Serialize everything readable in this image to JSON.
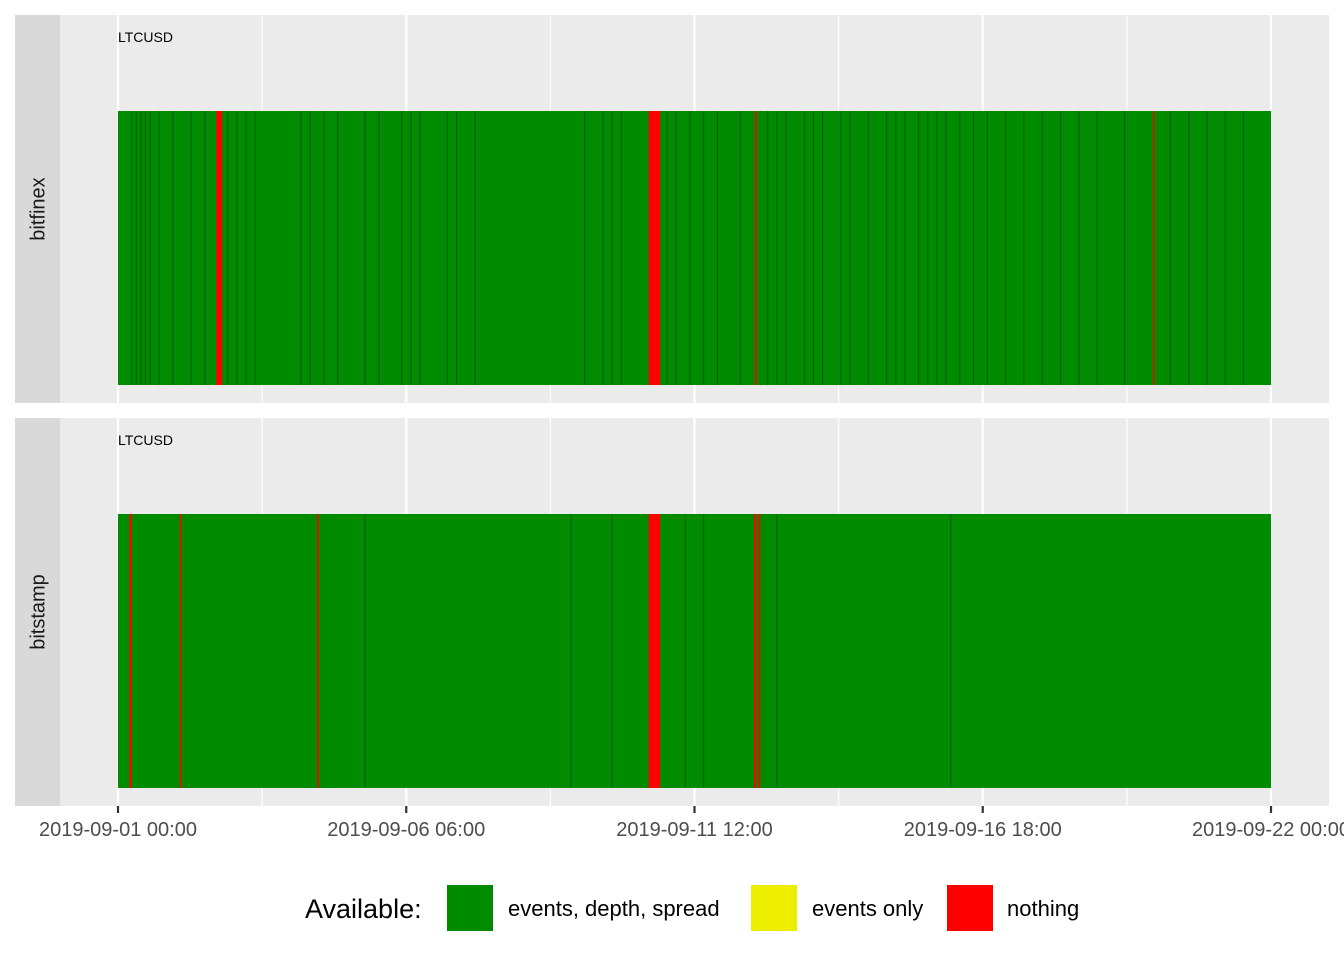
{
  "chart_data": {
    "type": "timeline",
    "x_range": [
      "2019-09-01 00:00",
      "2019-09-22 00:00"
    ],
    "x_ticks": [
      "2019-09-01 00:00",
      "2019-09-06 06:00",
      "2019-09-11 12:00",
      "2019-09-16 18:00",
      "2019-09-22 00:00"
    ],
    "legend": {
      "title": "Available:",
      "items": [
        {
          "label": "events, depth, spread",
          "color": "#008b00"
        },
        {
          "label": "events only",
          "color": "#eeee00"
        },
        {
          "label": "nothing",
          "color": "#ff0000"
        }
      ]
    },
    "colors": {
      "available": "#008b00",
      "events_only": "#eeee00",
      "nothing": "#ff0000",
      "gap_line": "#004d00",
      "panel_bg": "#ebebeb",
      "strip_bg": "#d9d9d9",
      "grid": "#ffffff"
    },
    "panels": [
      {
        "facet": "bitfinex",
        "symbol": "LTCUSD",
        "nothing_intervals": [
          [
            "2019-09-02 19:00",
            "2019-09-02 21:30"
          ],
          [
            "2019-09-10 16:00",
            "2019-09-10 21:00"
          ],
          [
            "2019-09-12 14:30",
            "2019-09-12 15:15"
          ],
          [
            "2019-09-19 20:30",
            "2019-09-19 21:00"
          ]
        ],
        "dark_lines": [
          "2019-09-01 06:00",
          "2019-09-01 08:00",
          "2019-09-01 10:00",
          "2019-09-01 12:00",
          "2019-09-01 14:00",
          "2019-09-01 18:00",
          "2019-09-02 00:00",
          "2019-09-02 08:00",
          "2019-09-02 14:00",
          "2019-09-03 00:00",
          "2019-09-03 04:00",
          "2019-09-03 08:00",
          "2019-09-03 12:00",
          "2019-09-04 08:00",
          "2019-09-04 12:00",
          "2019-09-04 18:00",
          "2019-09-05 00:00",
          "2019-09-05 12:00",
          "2019-09-05 18:00",
          "2019-09-06 04:00",
          "2019-09-06 08:00",
          "2019-09-06 12:00",
          "2019-09-07 00:00",
          "2019-09-07 04:00",
          "2019-09-07 12:00",
          "2019-09-09 12:00",
          "2019-09-09 20:00",
          "2019-09-10 00:00",
          "2019-09-10 04:00",
          "2019-09-11 00:00",
          "2019-09-11 04:00",
          "2019-09-11 10:00",
          "2019-09-11 16:00",
          "2019-09-11 22:00",
          "2019-09-12 08:00",
          "2019-09-12 20:00",
          "2019-09-13 00:00",
          "2019-09-13 04:00",
          "2019-09-13 12:00",
          "2019-09-13 16:00",
          "2019-09-13 20:00",
          "2019-09-14 04:00",
          "2019-09-14 08:00",
          "2019-09-14 16:00",
          "2019-09-15 00:00",
          "2019-09-15 04:00",
          "2019-09-15 08:00",
          "2019-09-15 14:00",
          "2019-09-15 18:00",
          "2019-09-15 22:00",
          "2019-09-16 02:00",
          "2019-09-16 08:00",
          "2019-09-16 14:00",
          "2019-09-16 20:00",
          "2019-09-17 04:00",
          "2019-09-17 12:00",
          "2019-09-17 20:00",
          "2019-09-18 04:00",
          "2019-09-18 12:00",
          "2019-09-18 20:00",
          "2019-09-19 08:00",
          "2019-09-20 04:00",
          "2019-09-20 12:00",
          "2019-09-20 20:00",
          "2019-09-21 04:00",
          "2019-09-21 12:00"
        ]
      },
      {
        "facet": "bitstamp",
        "symbol": "LTCUSD",
        "nothing_intervals": [
          [
            "2019-09-01 05:00",
            "2019-09-01 06:00"
          ],
          [
            "2019-09-02 03:00",
            "2019-09-02 03:45"
          ],
          [
            "2019-09-04 15:00",
            "2019-09-04 15:45"
          ],
          [
            "2019-09-10 16:00",
            "2019-09-10 21:00"
          ],
          [
            "2019-09-12 14:00",
            "2019-09-12 15:00"
          ],
          [
            "2019-09-12 16:00",
            "2019-09-12 16:45"
          ]
        ],
        "dark_lines": [
          "2019-09-05 12:00",
          "2019-09-09 06:00",
          "2019-09-10 00:00",
          "2019-09-11 08:00",
          "2019-09-11 16:00",
          "2019-09-13 00:00",
          "2019-09-16 04:00"
        ]
      }
    ]
  }
}
